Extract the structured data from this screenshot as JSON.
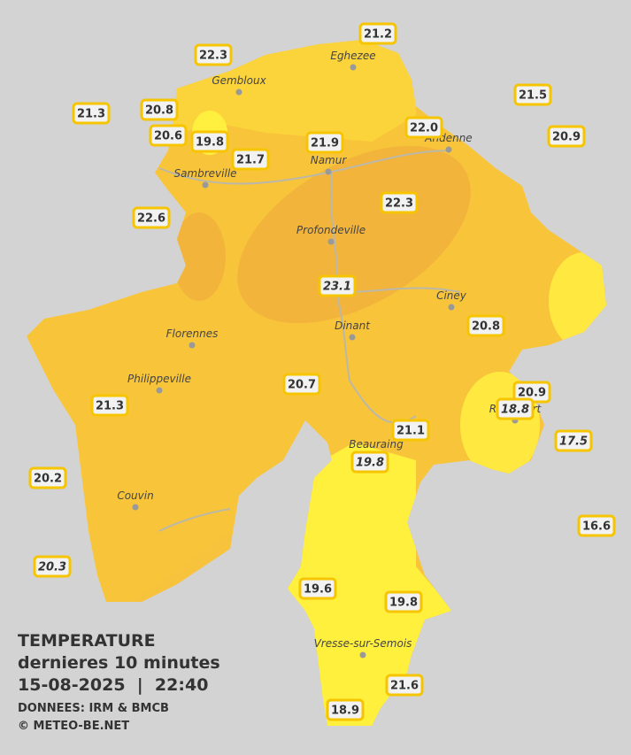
{
  "cities": [
    "Eghezee",
    "Gembloux",
    "Andenne",
    "Namur",
    "Sambreville",
    "Profondeville",
    "Ciney",
    "Dinant",
    "Florennes",
    "Philippeville",
    "Rochefort",
    "Beauraing",
    "Couvin",
    "Vresse-sur-Semois"
  ],
  "stations": [
    {
      "value": "22.3"
    },
    {
      "value": "21.2"
    },
    {
      "value": "21.5"
    },
    {
      "value": "21.3"
    },
    {
      "value": "20.8"
    },
    {
      "value": "20.6"
    },
    {
      "value": "19.8"
    },
    {
      "value": "22.0"
    },
    {
      "value": "20.9"
    },
    {
      "value": "21.9"
    },
    {
      "value": "21.7"
    },
    {
      "value": "22.3"
    },
    {
      "value": "22.6"
    },
    {
      "value": "23.1",
      "italic": true
    },
    {
      "value": "20.8"
    },
    {
      "value": "20.7"
    },
    {
      "value": "20.9"
    },
    {
      "value": "18.8",
      "italic": true
    },
    {
      "value": "21.3"
    },
    {
      "value": "21.1"
    },
    {
      "value": "17.5",
      "italic": true
    },
    {
      "value": "19.8",
      "italic": true
    },
    {
      "value": "20.2"
    },
    {
      "value": "16.6"
    },
    {
      "value": "20.3",
      "italic": true
    },
    {
      "value": "19.6"
    },
    {
      "value": "19.8"
    },
    {
      "value": "21.6"
    },
    {
      "value": "18.9"
    }
  ],
  "legend": {
    "title": "TEMPERATURE",
    "subtitle": "dernieres 10 minutes",
    "datetime": "15-08-2025  |  22:40",
    "source": "DONNEES: IRM & BMCB",
    "copyright": "© METEO-BE.NET"
  }
}
